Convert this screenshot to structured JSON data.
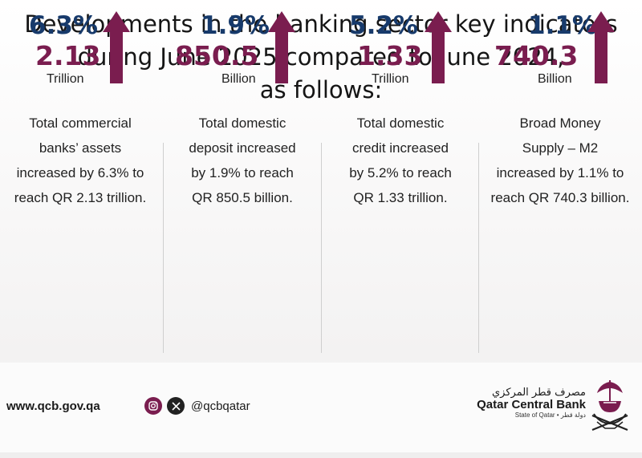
{
  "title": {
    "line1": "Developments in the banking sector key indicators",
    "line2": "during June 2025 compared to June 2024,",
    "line3": "as follows:"
  },
  "indicators": [
    {
      "percent": "6.3%",
      "value": "2.13",
      "unit": "Trillion",
      "desc": [
        "Total commercial",
        "banks’ assets",
        "increased by 6.3% to",
        "reach QR 2.13 trillion."
      ]
    },
    {
      "percent": "1.9%",
      "value": "850.5",
      "unit": "Billion",
      "desc": [
        "Total domestic",
        "deposit increased",
        "by 1.9% to reach",
        "QR 850.5  billion."
      ]
    },
    {
      "percent": "5.2%",
      "value": "1.33",
      "unit": "Trillion",
      "desc": [
        "Total domestic",
        "credit increased",
        "by 5.2% to reach",
        "QR 1.33 trillion."
      ]
    },
    {
      "percent": "1.1%",
      "value": "740.3",
      "unit": "Billion",
      "desc": [
        "Broad Money",
        "Supply – M2",
        "increased by 1.1% to",
        "reach QR 740.3 billion."
      ]
    }
  ],
  "footer": {
    "website": "www.qcb.gov.qa",
    "handle": "@qcbqatar",
    "icons": [
      "instagram-icon",
      "x-icon"
    ],
    "logo_ar": "مصرف قطر المركزي",
    "logo_en": "Qatar Central Bank",
    "logo_sub": "State of Qatar • دولة قطر"
  },
  "colors": {
    "percent": "#173a6b",
    "value": "#7a1d4f",
    "arrow": "#7a1d4f"
  }
}
